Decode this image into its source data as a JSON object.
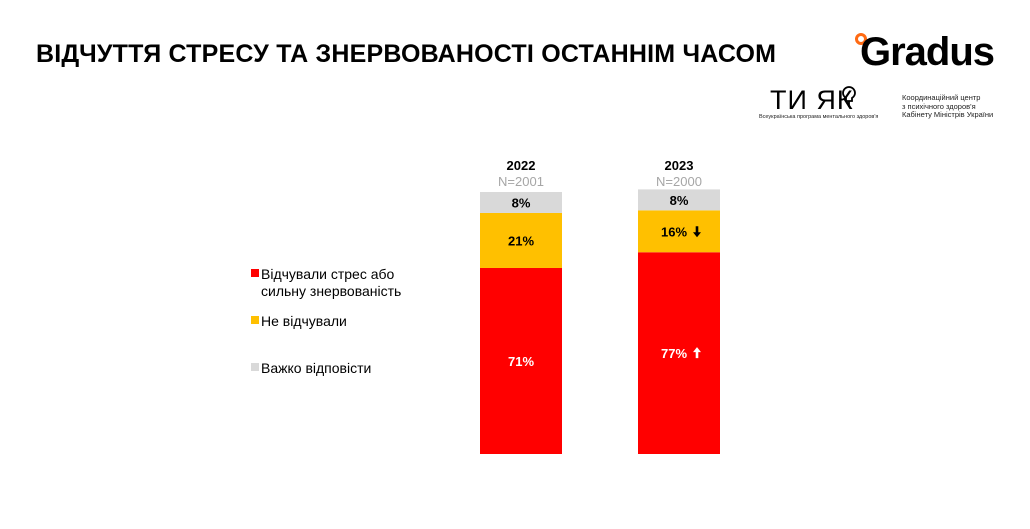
{
  "title": "ВІДЧУТТЯ СТРЕСУ ТА ЗНЕРВОВАНОСТІ ОСТАННІМ ЧАСОМ",
  "logos": {
    "gradus": "Gradus",
    "tyak_main": "ТИ ЯК",
    "tyak_sub": "Всеукраїнська програма ментального здоров'я",
    "center_lines": [
      "Координаційний центр",
      "з психічного здоров'я",
      "Кабінету Міністрів України"
    ]
  },
  "legend": [
    {
      "label": "Відчували стрес або\nсильну знервованість",
      "color": "#ff0000"
    },
    {
      "label": "Не відчували",
      "color": "#ffc000"
    },
    {
      "label": "Важко відповісти",
      "color": "#d9d9d9"
    }
  ],
  "chart_data": {
    "type": "bar",
    "stacked": true,
    "orientation": "vertical",
    "categories": [
      "2022",
      "2023"
    ],
    "sample_sizes": [
      "N=2001",
      "N=2000"
    ],
    "series": [
      {
        "name": "Відчували стрес або сильну знервованість",
        "values": [
          71,
          77
        ],
        "labels": [
          "71%",
          "77%"
        ],
        "color": "#ff0000",
        "change": [
          null,
          "up"
        ]
      },
      {
        "name": "Не відчували",
        "values": [
          21,
          16
        ],
        "labels": [
          "21%",
          "16%"
        ],
        "color": "#ffc000",
        "change": [
          null,
          "down"
        ]
      },
      {
        "name": "Важко відповісти",
        "values": [
          8,
          8
        ],
        "labels": [
          "8%",
          "8%"
        ],
        "color": "#d9d9d9",
        "change": [
          null,
          null
        ]
      }
    ],
    "ylim": [
      0,
      100
    ],
    "unit": "%"
  }
}
